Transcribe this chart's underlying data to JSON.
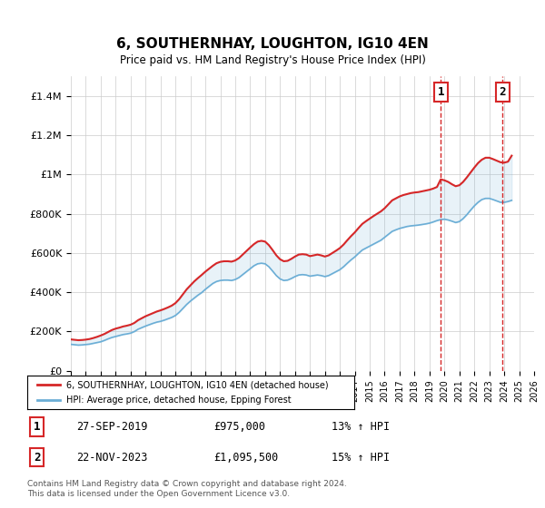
{
  "title": "6, SOUTHERNHAY, LOUGHTON, IG10 4EN",
  "subtitle": "Price paid vs. HM Land Registry's House Price Index (HPI)",
  "ylabel_ticks": [
    "£0",
    "£200K",
    "£400K",
    "£600K",
    "£800K",
    "£1M",
    "£1.2M",
    "£1.4M"
  ],
  "ylabel_values": [
    0,
    200000,
    400000,
    600000,
    800000,
    1000000,
    1200000,
    1400000
  ],
  "ylim": [
    0,
    1500000
  ],
  "xlim_start": 1995,
  "xlim_end": 2026,
  "x_ticks": [
    1995,
    1996,
    1997,
    1998,
    1999,
    2000,
    2001,
    2002,
    2003,
    2004,
    2005,
    2006,
    2007,
    2008,
    2009,
    2010,
    2011,
    2012,
    2013,
    2014,
    2015,
    2016,
    2017,
    2018,
    2019,
    2020,
    2021,
    2022,
    2023,
    2024,
    2025,
    2026
  ],
  "hpi_color": "#6baed6",
  "price_color": "#d62728",
  "vline1_x": 2019.75,
  "vline2_x": 2023.9,
  "marker1_label": "1",
  "marker2_label": "2",
  "sale1_date": "27-SEP-2019",
  "sale1_price": "£975,000",
  "sale1_hpi": "13% ↑ HPI",
  "sale2_date": "22-NOV-2023",
  "sale2_price": "£1,095,500",
  "sale2_hpi": "15% ↑ HPI",
  "legend_line1": "6, SOUTHERNHAY, LOUGHTON, IG10 4EN (detached house)",
  "legend_line2": "HPI: Average price, detached house, Epping Forest",
  "footnote": "Contains HM Land Registry data © Crown copyright and database right 2024.\nThis data is licensed under the Open Government Licence v3.0.",
  "background_color": "#ffffff",
  "grid_color": "#cccccc",
  "hpi_data_x": [
    1995.0,
    1995.25,
    1995.5,
    1995.75,
    1996.0,
    1996.25,
    1996.5,
    1996.75,
    1997.0,
    1997.25,
    1997.5,
    1997.75,
    1998.0,
    1998.25,
    1998.5,
    1998.75,
    1999.0,
    1999.25,
    1999.5,
    1999.75,
    2000.0,
    2000.25,
    2000.5,
    2000.75,
    2001.0,
    2001.25,
    2001.5,
    2001.75,
    2002.0,
    2002.25,
    2002.5,
    2002.75,
    2003.0,
    2003.25,
    2003.5,
    2003.75,
    2004.0,
    2004.25,
    2004.5,
    2004.75,
    2005.0,
    2005.25,
    2005.5,
    2005.75,
    2006.0,
    2006.25,
    2006.5,
    2006.75,
    2007.0,
    2007.25,
    2007.5,
    2007.75,
    2008.0,
    2008.25,
    2008.5,
    2008.75,
    2009.0,
    2009.25,
    2009.5,
    2009.75,
    2010.0,
    2010.25,
    2010.5,
    2010.75,
    2011.0,
    2011.25,
    2011.5,
    2011.75,
    2012.0,
    2012.25,
    2012.5,
    2012.75,
    2013.0,
    2013.25,
    2013.5,
    2013.75,
    2014.0,
    2014.25,
    2014.5,
    2014.75,
    2015.0,
    2015.25,
    2015.5,
    2015.75,
    2016.0,
    2016.25,
    2016.5,
    2016.75,
    2017.0,
    2017.25,
    2017.5,
    2017.75,
    2018.0,
    2018.25,
    2018.5,
    2018.75,
    2019.0,
    2019.25,
    2019.5,
    2019.75,
    2020.0,
    2020.25,
    2020.5,
    2020.75,
    2021.0,
    2021.25,
    2021.5,
    2021.75,
    2022.0,
    2022.25,
    2022.5,
    2022.75,
    2023.0,
    2023.25,
    2023.5,
    2023.75,
    2024.0,
    2024.25,
    2024.5
  ],
  "hpi_data_y": [
    135000,
    133000,
    131000,
    132000,
    134000,
    136000,
    140000,
    144000,
    148000,
    155000,
    163000,
    170000,
    175000,
    180000,
    185000,
    188000,
    192000,
    200000,
    212000,
    220000,
    228000,
    235000,
    242000,
    248000,
    252000,
    258000,
    265000,
    272000,
    282000,
    298000,
    318000,
    338000,
    355000,
    370000,
    385000,
    398000,
    415000,
    430000,
    445000,
    455000,
    460000,
    462000,
    462000,
    460000,
    465000,
    475000,
    490000,
    505000,
    520000,
    535000,
    545000,
    548000,
    545000,
    530000,
    508000,
    485000,
    468000,
    460000,
    462000,
    470000,
    480000,
    488000,
    490000,
    488000,
    482000,
    485000,
    488000,
    485000,
    480000,
    485000,
    495000,
    505000,
    515000,
    530000,
    548000,
    565000,
    580000,
    598000,
    615000,
    625000,
    635000,
    645000,
    655000,
    665000,
    680000,
    695000,
    710000,
    718000,
    725000,
    730000,
    735000,
    738000,
    740000,
    742000,
    745000,
    748000,
    752000,
    758000,
    765000,
    770000,
    772000,
    768000,
    762000,
    755000,
    760000,
    775000,
    795000,
    818000,
    840000,
    858000,
    872000,
    878000,
    878000,
    872000,
    865000,
    858000,
    858000,
    862000,
    868000
  ],
  "price_data_x": [
    1995.0,
    1995.25,
    1995.5,
    1995.75,
    1996.0,
    1996.25,
    1996.5,
    1996.75,
    1997.0,
    1997.25,
    1997.5,
    1997.75,
    1998.0,
    1998.25,
    1998.5,
    1998.75,
    1999.0,
    1999.25,
    1999.5,
    1999.75,
    2000.0,
    2000.25,
    2000.5,
    2000.75,
    2001.0,
    2001.25,
    2001.5,
    2001.75,
    2002.0,
    2002.25,
    2002.5,
    2002.75,
    2003.0,
    2003.25,
    2003.5,
    2003.75,
    2004.0,
    2004.25,
    2004.5,
    2004.75,
    2005.0,
    2005.25,
    2005.5,
    2005.75,
    2006.0,
    2006.25,
    2006.5,
    2006.75,
    2007.0,
    2007.25,
    2007.5,
    2007.75,
    2008.0,
    2008.25,
    2008.5,
    2008.75,
    2009.0,
    2009.25,
    2009.5,
    2009.75,
    2010.0,
    2010.25,
    2010.5,
    2010.75,
    2011.0,
    2011.25,
    2011.5,
    2011.75,
    2012.0,
    2012.25,
    2012.5,
    2012.75,
    2013.0,
    2013.25,
    2013.5,
    2013.75,
    2014.0,
    2014.25,
    2014.5,
    2014.75,
    2015.0,
    2015.25,
    2015.5,
    2015.75,
    2016.0,
    2016.25,
    2016.5,
    2016.75,
    2017.0,
    2017.25,
    2017.5,
    2017.75,
    2018.0,
    2018.25,
    2018.5,
    2018.75,
    2019.0,
    2019.25,
    2019.5,
    2019.75,
    2020.0,
    2020.25,
    2020.5,
    2020.75,
    2021.0,
    2021.25,
    2021.5,
    2021.75,
    2022.0,
    2022.25,
    2022.5,
    2022.75,
    2023.0,
    2023.25,
    2023.5,
    2023.75,
    2024.0,
    2024.25,
    2024.5
  ],
  "price_data_y": [
    160000,
    158000,
    156000,
    157000,
    159000,
    162000,
    167000,
    173000,
    180000,
    188000,
    198000,
    208000,
    215000,
    220000,
    226000,
    230000,
    235000,
    244000,
    258000,
    268000,
    278000,
    286000,
    294000,
    302000,
    308000,
    315000,
    323000,
    332000,
    345000,
    365000,
    390000,
    415000,
    435000,
    455000,
    472000,
    488000,
    505000,
    520000,
    535000,
    548000,
    555000,
    558000,
    558000,
    556000,
    562000,
    574000,
    592000,
    610000,
    628000,
    645000,
    658000,
    662000,
    658000,
    640000,
    615000,
    588000,
    568000,
    558000,
    560000,
    570000,
    582000,
    592000,
    594000,
    592000,
    584000,
    588000,
    592000,
    588000,
    582000,
    588000,
    600000,
    612000,
    625000,
    643000,
    665000,
    686000,
    705000,
    727000,
    748000,
    762000,
    775000,
    788000,
    800000,
    812000,
    828000,
    848000,
    868000,
    878000,
    888000,
    895000,
    900000,
    905000,
    908000,
    910000,
    914000,
    918000,
    922000,
    928000,
    936000,
    975000,
    970000,
    962000,
    950000,
    940000,
    945000,
    962000,
    985000,
    1010000,
    1035000,
    1058000,
    1075000,
    1085000,
    1085000,
    1078000,
    1070000,
    1062000,
    1060000,
    1065000,
    1095500
  ]
}
